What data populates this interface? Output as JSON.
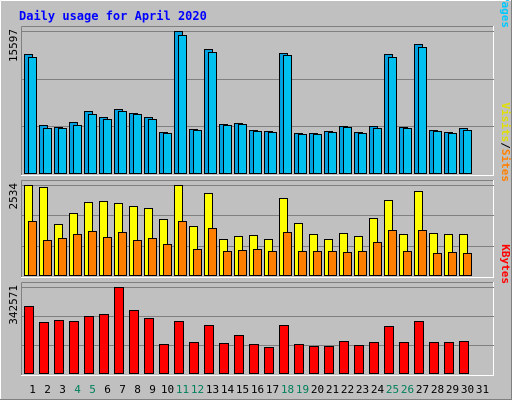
{
  "chart_data": {
    "type": "bar",
    "title": "Daily usage for April 2020",
    "categories": [
      "1",
      "2",
      "3",
      "4",
      "5",
      "6",
      "7",
      "8",
      "9",
      "10",
      "11",
      "12",
      "13",
      "14",
      "15",
      "16",
      "17",
      "18",
      "19",
      "20",
      "21",
      "22",
      "23",
      "24",
      "25",
      "26",
      "27",
      "28",
      "29",
      "30",
      "31"
    ],
    "weekend_days": [
      "4",
      "5",
      "11",
      "12",
      "18",
      "19",
      "25",
      "26"
    ],
    "panels": [
      {
        "id": "hits-files",
        "max_label": "15597",
        "right_labels": [
          "Pages",
          "Files",
          "Hits"
        ],
        "series": [
          {
            "name": "Hits",
            "color": "#00a0e0",
            "values": [
              13040,
              5290,
              5170,
              5670,
              6870,
              6220,
              7050,
              6680,
              6170,
              4600,
              15597,
              4920,
              13610,
              5460,
              5590,
              4760,
              4640,
              13200,
              4460,
              4500,
              4660,
              5280,
              4530,
              5200,
              13060,
              5120,
              14170,
              4800,
              4550,
              5000,
              0
            ]
          },
          {
            "name": "Files",
            "color": "#00c0f0",
            "values": [
              12760,
              5000,
              5000,
              5350,
              6570,
              6050,
              6920,
              6490,
              6050,
              4460,
              15200,
              4810,
              13300,
              5330,
              5450,
              4660,
              4550,
              13020,
              4360,
              4410,
              4570,
              5120,
              4420,
              5070,
              12780,
              4970,
              13900,
              4670,
              4440,
              4830,
              0
            ]
          }
        ]
      },
      {
        "id": "visits-sites",
        "max_label": "2534",
        "right_labels": [
          "Sites",
          "Visits"
        ],
        "series": [
          {
            "name": "Visits",
            "color": "#ffff00",
            "values": [
              2534,
              2480,
              1460,
              1760,
              2070,
              2100,
              2040,
              1960,
              1880,
              1600,
              2534,
              1400,
              2310,
              1040,
              1100,
              1130,
              1020,
              2170,
              1470,
              1170,
              1020,
              1190,
              1110,
              1620,
              2130,
              1160,
              2370,
              1210,
              1160,
              1160,
              0
            ]
          },
          {
            "name": "Sites",
            "color": "#ff8000",
            "values": [
              1540,
              1000,
              1070,
              1180,
              1240,
              1080,
              1220,
              1000,
              1050,
              890,
              1530,
              760,
              1350,
              710,
              730,
              740,
              710,
              1230,
              690,
              700,
              690,
              680,
              690,
              950,
              1280,
              690,
              1270,
              640,
              670,
              650,
              0
            ]
          }
        ]
      },
      {
        "id": "kbytes",
        "max_label": "342571",
        "right_labels": [
          "KBytes"
        ],
        "series": [
          {
            "name": "KBytes",
            "color": "#ff0000",
            "values": [
              268000,
              205000,
              212000,
              209000,
              227000,
              235000,
              342571,
              252000,
              219000,
              118000,
              207000,
              127000,
              192000,
              122000,
              153000,
              118000,
              108000,
              193000,
              119000,
              110000,
              112000,
              128000,
              114000,
              125000,
              190000,
              126000,
              210000,
              127000,
              125000,
              128000,
              0
            ]
          }
        ]
      }
    ],
    "colors": {
      "background": "#c0c0c0",
      "title": "#0000ff",
      "axis_text": "#000000",
      "weekday_tick": "#000000",
      "weekend_tick": "#00805c"
    }
  }
}
